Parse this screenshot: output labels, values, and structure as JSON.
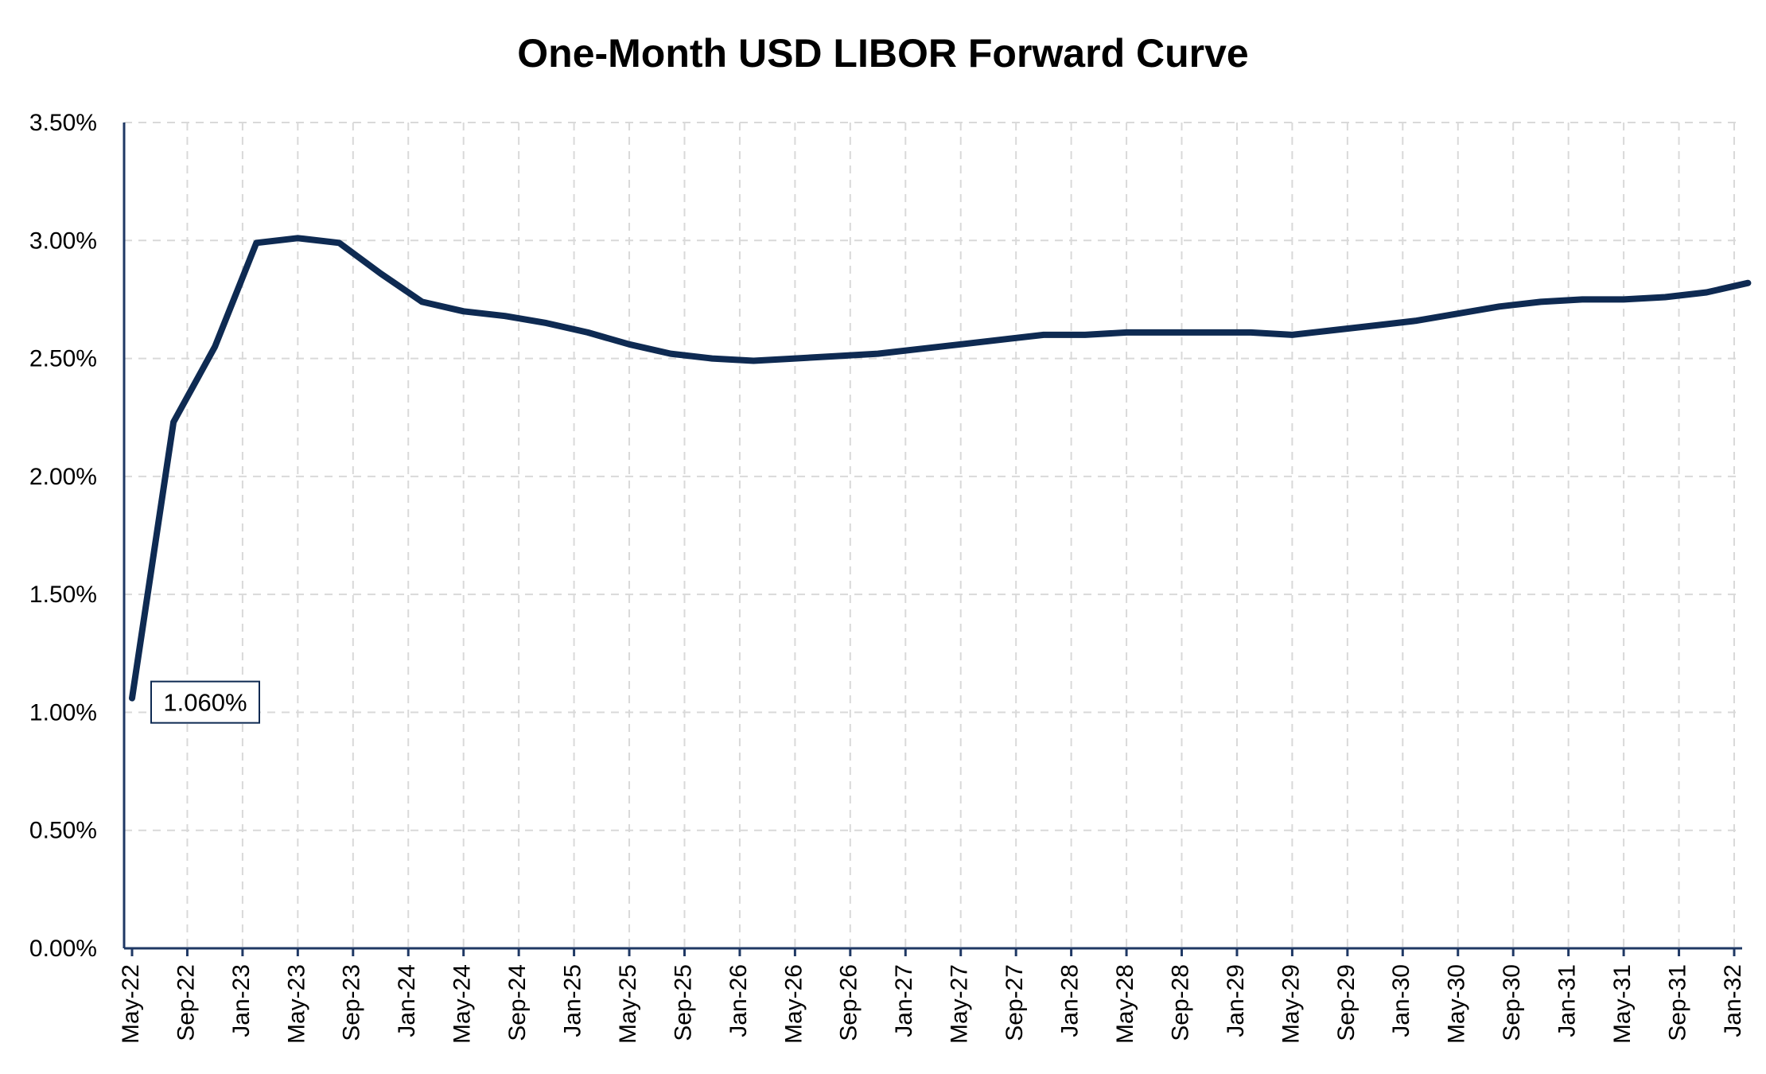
{
  "chart_data": {
    "type": "line",
    "title": "One-Month USD LIBOR Forward Curve",
    "xlabel": "",
    "ylabel": "",
    "ylim": [
      0,
      0.035
    ],
    "yticks": [
      "0.00%",
      "0.50%",
      "1.00%",
      "1.50%",
      "2.00%",
      "2.50%",
      "3.00%",
      "3.50%"
    ],
    "xticks": [
      "May-22",
      "Sep-22",
      "Jan-23",
      "May-23",
      "Sep-23",
      "Jan-24",
      "May-24",
      "Sep-24",
      "Jan-25",
      "May-25",
      "Sep-25",
      "Jan-26",
      "May-26",
      "Sep-26",
      "Jan-27",
      "May-27",
      "Sep-27",
      "Jan-28",
      "May-28",
      "Sep-28",
      "Jan-29",
      "May-29",
      "Sep-29",
      "Jan-30",
      "May-30",
      "Sep-30",
      "Jan-31",
      "May-31",
      "Sep-31",
      "Jan-32"
    ],
    "grid": true,
    "legend": "none",
    "color": "#0e2a52",
    "annotation": {
      "label": "1.060%",
      "x": "May-22",
      "y": 0.0106
    },
    "series": [
      {
        "x": [
          "May-22",
          "Aug-22",
          "Nov-22",
          "Feb-23",
          "May-23",
          "Aug-23",
          "Nov-23",
          "Feb-24",
          "May-24",
          "Aug-24",
          "Nov-24",
          "Feb-25",
          "May-25",
          "Aug-25",
          "Nov-25",
          "Feb-26",
          "May-26",
          "Aug-26",
          "Nov-26",
          "Feb-27",
          "May-27",
          "Aug-27",
          "Nov-27",
          "Feb-28",
          "May-28",
          "Aug-28",
          "Nov-28",
          "Feb-29",
          "May-29",
          "Aug-29",
          "Nov-29",
          "Feb-30",
          "May-30",
          "Aug-30",
          "Nov-30",
          "Feb-31",
          "May-31",
          "Aug-31",
          "Nov-31",
          "Feb-32"
        ],
        "values": [
          0.0106,
          0.0223,
          0.0255,
          0.0299,
          0.0301,
          0.0299,
          0.0286,
          0.0274,
          0.027,
          0.0268,
          0.0265,
          0.0261,
          0.0256,
          0.0252,
          0.025,
          0.0249,
          0.025,
          0.0251,
          0.0252,
          0.0254,
          0.0256,
          0.0258,
          0.026,
          0.026,
          0.0261,
          0.0261,
          0.0261,
          0.0261,
          0.026,
          0.0262,
          0.0264,
          0.0266,
          0.0269,
          0.0272,
          0.0274,
          0.0275,
          0.0275,
          0.0276,
          0.0278,
          0.0282
        ]
      }
    ]
  }
}
